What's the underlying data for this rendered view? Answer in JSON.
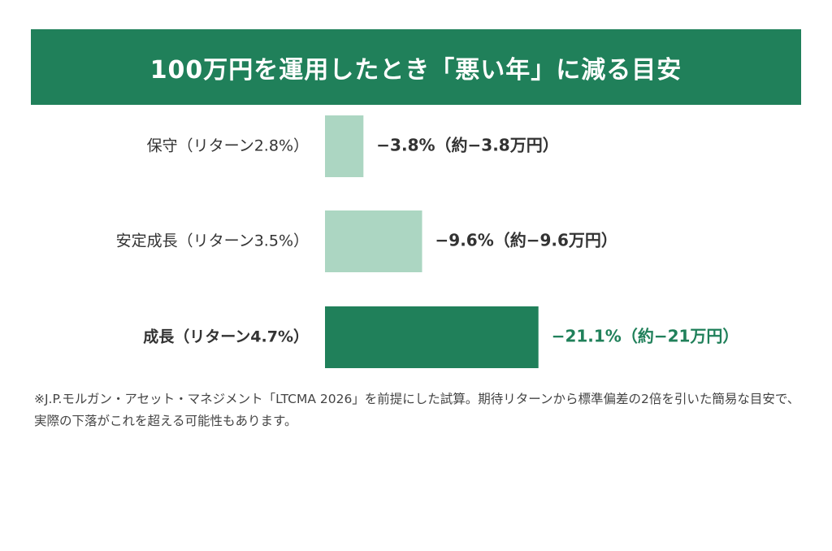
{
  "chart_data": {
    "type": "bar",
    "orientation": "horizontal",
    "title": "100万円を運用したとき「悪い年」に減る目安",
    "categories": [
      "保守（リターン2.8%）",
      "安定成長（リターン3.5%）",
      "成長（リターン4.7%）"
    ],
    "values": [
      -3.8,
      -9.6,
      -21.1
    ],
    "value_labels": [
      "−3.8%（約−3.8万円）",
      "−9.6%（約−9.6万円）",
      "−21.1%（約−21万円）"
    ],
    "highlight_index": 2,
    "colors": {
      "normal": "#acd6c2",
      "highlight": "#20805a",
      "title_bg": "#20805a",
      "label_normal": "#333333",
      "label_highlight": "#20805a"
    },
    "xlabel": "",
    "ylabel": "",
    "grid": false
  },
  "footnote": "※J.P.モルガン・アセット・マネジメント「LTCMA 2026」を前提にした試算。期待リターンから標準偏差の2倍を引いた簡易な目安で、実際の下落がこれを超える可能性もあります。"
}
